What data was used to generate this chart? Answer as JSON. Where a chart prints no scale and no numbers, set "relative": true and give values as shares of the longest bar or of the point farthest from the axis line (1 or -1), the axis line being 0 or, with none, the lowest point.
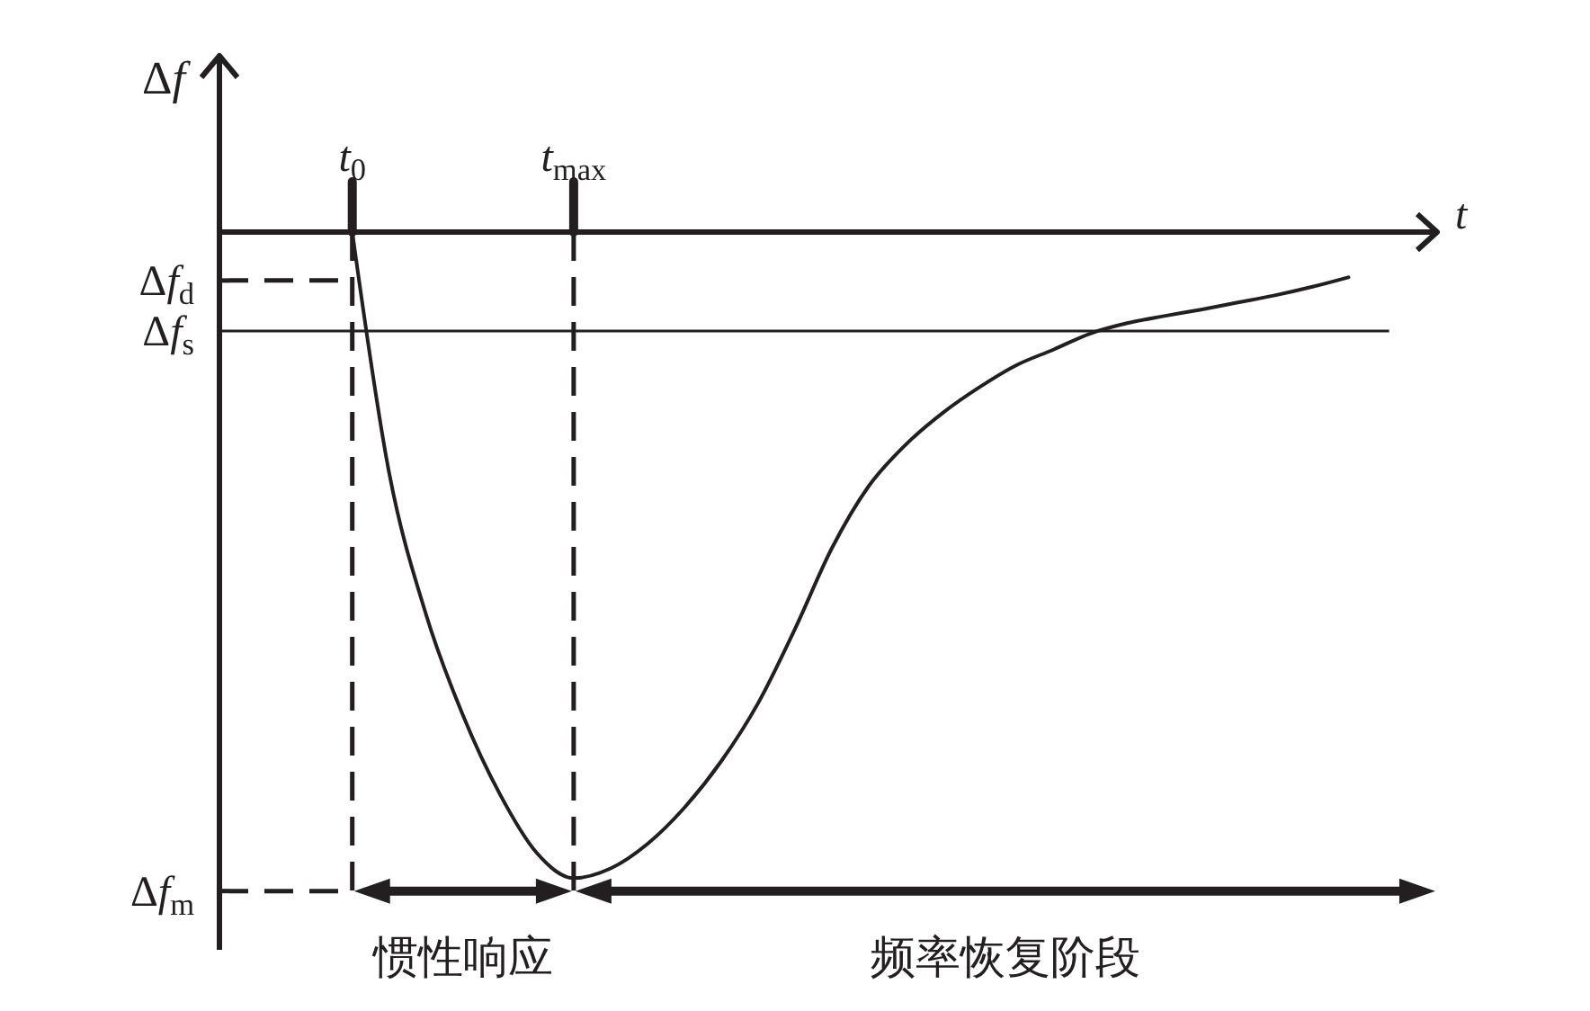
{
  "chart_data": {
    "type": "line",
    "xlabel": "t",
    "ylabel": "Δf",
    "relative": true,
    "categories": [
      "t$_{0}$",
      null,
      null,
      null,
      null,
      null,
      "t$_{max}$",
      null,
      null,
      null,
      null,
      null,
      null,
      null,
      null,
      null,
      null,
      null,
      null,
      null,
      null,
      null,
      null,
      null,
      null,
      null,
      null,
      null
    ],
    "series": [
      {
        "color": "#231f20",
        "values": [
          0,
          -0.373,
          -0.592,
          -0.748,
          -0.87,
          -0.961,
          -1,
          -0.985,
          -0.947,
          -0.891,
          -0.819,
          -0.729,
          -0.614,
          -0.489,
          -0.393,
          -0.329,
          -0.28,
          -0.24,
          -0.206,
          -0.182,
          -0.157,
          -0.141,
          -0.13,
          -0.12,
          -0.109,
          -0.098,
          -0.085,
          -0.07
        ]
      }
    ],
    "ref_lines": [
      {
        "axis": "y",
        "value": -0.075,
        "label": "Δf$_{d}$",
        "line_style": "dashed"
      },
      {
        "axis": "y",
        "value": -0.153,
        "label": "Δf$_{s}$",
        "line_style": "solid"
      },
      {
        "axis": "y",
        "value": -1.02,
        "label": "Δf$_{m}$",
        "line_style": "dashed"
      },
      {
        "axis": "x",
        "value": "t$_{0}$",
        "line_style": "dashed"
      },
      {
        "axis": "x",
        "value": "t$_{max}$",
        "line_style": "dashed"
      }
    ],
    "annotations": [
      "惯性响应",
      "频率恢复阶段"
    ],
    "marker": "none",
    "line_style": "solid"
  }
}
